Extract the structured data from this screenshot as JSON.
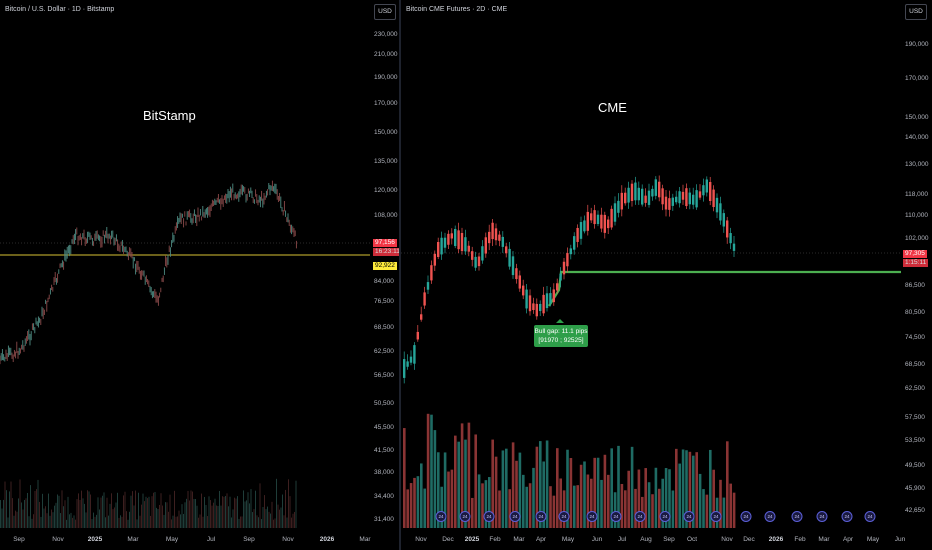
{
  "left": {
    "title": "Bitcoin / U.S. Dollar · 1D · Bitstamp",
    "label": "BitStamp",
    "currency": "USD",
    "y_labels": [
      "230,000",
      "210,000",
      "190,000",
      "170,000",
      "150,000",
      "135,000",
      "120,000",
      "108,000",
      "84,000",
      "76,500",
      "68,500",
      "62,500",
      "56,500",
      "50,500",
      "45,500",
      "41,500",
      "38,000",
      "34,400",
      "31,400"
    ],
    "price_tags": {
      "last": "97,156",
      "countdown": "16:23:11",
      "level": "92,922"
    },
    "x_labels": [
      "Sep",
      "Nov",
      "2025",
      "Mar",
      "May",
      "Jul",
      "Sep",
      "Nov",
      "2026",
      "Mar"
    ],
    "colors": {
      "level_line": "#d9c233",
      "last_tag": "#f23645",
      "level_tag": "#ffeb3b"
    }
  },
  "right": {
    "title": "Bitcoin CME Futures · 2D · CME",
    "label": "CME",
    "currency": "USD",
    "y_labels": [
      "190,000",
      "170,000",
      "150,000",
      "140,000",
      "130,000",
      "118,000",
      "110,000",
      "102,000",
      "86,500",
      "80,500",
      "74,500",
      "68,500",
      "62,500",
      "57,500",
      "53,500",
      "49,500",
      "45,900",
      "42,650"
    ],
    "price_tags": {
      "last": "97,305",
      "countdown": "1:15:11"
    },
    "x_labels": [
      "Nov",
      "Dec",
      "2025",
      "Feb",
      "Mar",
      "Apr",
      "May",
      "Jun",
      "Jul",
      "Aug",
      "Sep",
      "Oct",
      "Nov",
      "Dec",
      "2026",
      "Feb",
      "Mar",
      "Apr",
      "May",
      "Jun"
    ],
    "tooltip": {
      "line1": "Bull gap: 11.1 pips",
      "line2": "[91970 ; 92525]"
    },
    "event_icon": "dividend-icon",
    "colors": {
      "up": "#26a69a",
      "down": "#ef5350",
      "gap_line": "#4caf50",
      "last_tag": "#f23645"
    }
  }
}
